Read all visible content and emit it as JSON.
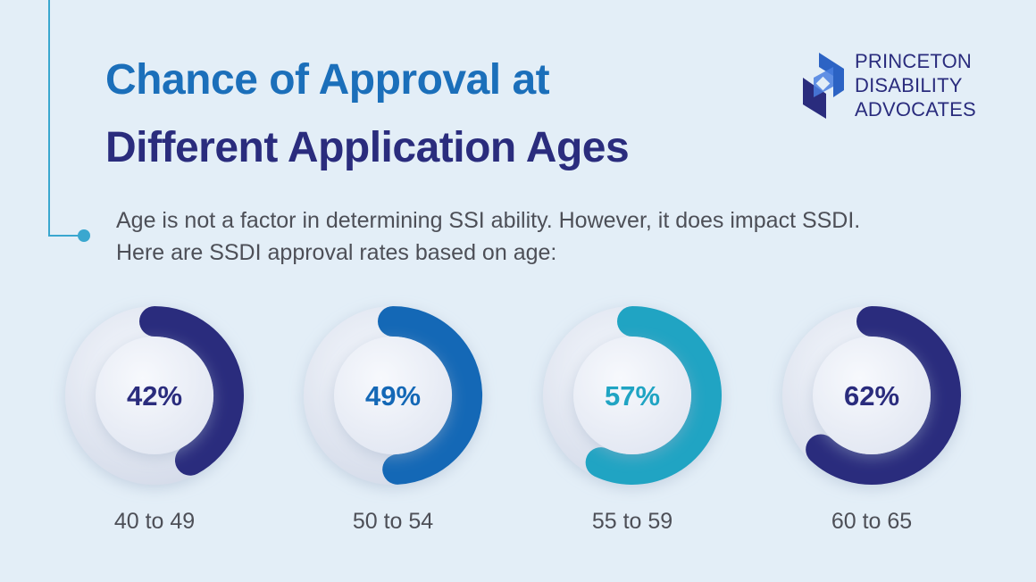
{
  "header": {
    "title_line1": "Chance of Approval at",
    "title_line2": "Different Application Ages",
    "intro": "Age is not a factor in determining SSI ability. However, it does impact SSDI. Here are SSDI approval rates based on age:"
  },
  "logo": {
    "line1": "PRINCETON",
    "line2": "DISABILITY",
    "line3": "ADVOCATES"
  },
  "colors": {
    "background": "#e3eef7",
    "title_blue": "#1b6fba",
    "title_navy": "#2a2c7d",
    "accent_teal": "#3aa7cf"
  },
  "chart_data": {
    "type": "pie",
    "title": "Chance of Approval at Different Application Ages",
    "categories": [
      "40 to 49",
      "50 to 54",
      "55 to 59",
      "60 to 65"
    ],
    "values": [
      42,
      49,
      57,
      62
    ],
    "labels": [
      "42%",
      "49%",
      "57%",
      "62%"
    ],
    "colors": [
      "#2a2c7d",
      "#1468b6",
      "#20a4c3",
      "#2a2c7d"
    ],
    "legend": "none"
  }
}
